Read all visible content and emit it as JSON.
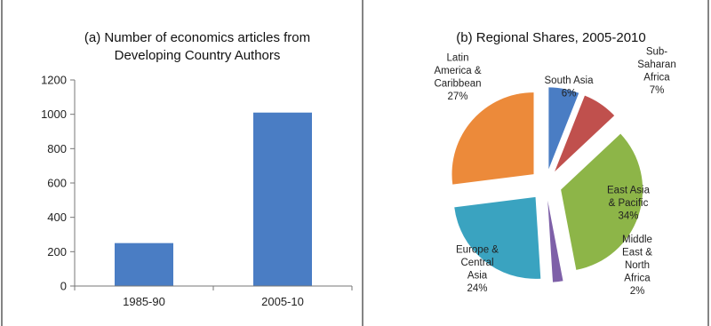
{
  "chart_data": [
    {
      "type": "bar",
      "title_lines": [
        "(a) Number of economics articles from",
        "Developing Country Authors"
      ],
      "categories": [
        "1985-90",
        "2005-10"
      ],
      "values": [
        250,
        1010
      ],
      "ylim": [
        0,
        1200
      ],
      "yticks": [
        0,
        200,
        400,
        600,
        800,
        1000,
        1200
      ],
      "xlabel": "",
      "ylabel": "",
      "grid": false,
      "bar_color": "#4a7dc4"
    },
    {
      "type": "pie",
      "title": "(b) Regional Shares, 2005-2010",
      "exploded": true,
      "slices": [
        {
          "label_lines": [
            "South Asia",
            "6%"
          ],
          "value": 6,
          "color": "#4a7dc4"
        },
        {
          "label_lines": [
            "Sub-",
            "Saharan",
            "Africa",
            "7%"
          ],
          "value": 7,
          "color": "#c0504d"
        },
        {
          "label_lines": [
            "East Asia",
            "& Pacific",
            "34%"
          ],
          "value": 34,
          "color": "#8db548"
        },
        {
          "label_lines": [
            "Middle",
            "East &",
            "North",
            "Africa",
            "2%"
          ],
          "value": 2,
          "color": "#7e60a8"
        },
        {
          "label_lines": [
            "Europe &",
            "Central",
            "Asia",
            "24%"
          ],
          "value": 24,
          "color": "#3aa3c0"
        },
        {
          "label_lines": [
            "Latin",
            "America &",
            "Caribbean",
            "27%"
          ],
          "value": 27,
          "color": "#ec8a3a"
        }
      ]
    }
  ]
}
